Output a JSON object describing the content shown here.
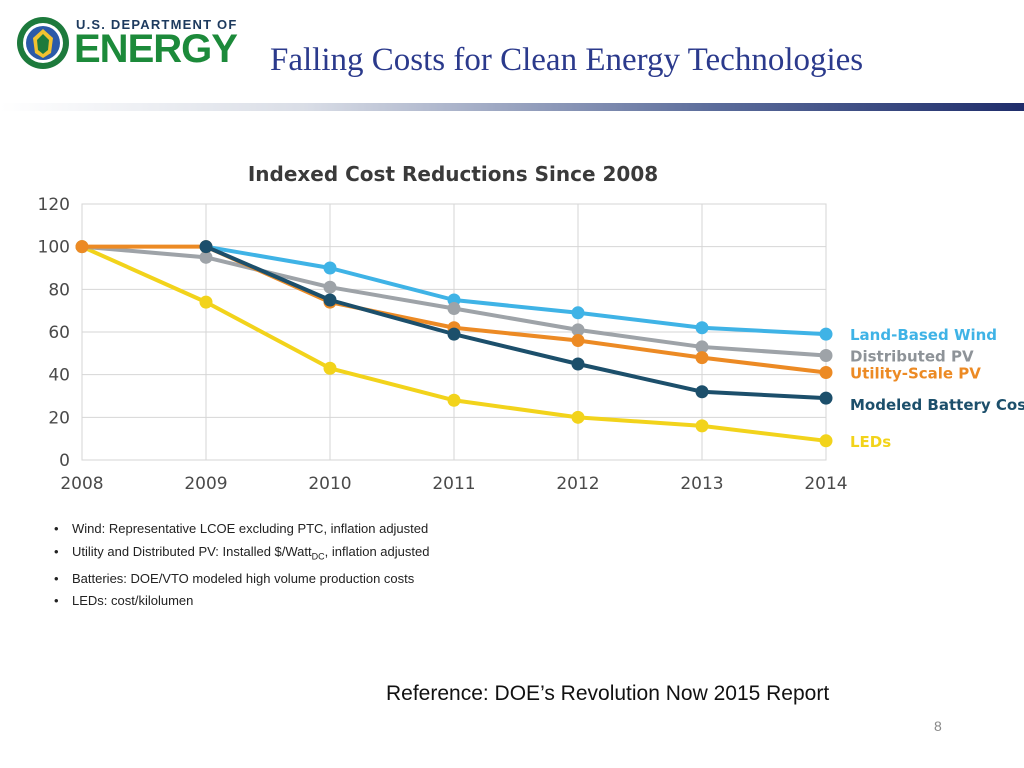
{
  "header": {
    "dept_line": "U.S. DEPARTMENT OF",
    "wordmark": "ENERGY",
    "title": "Falling Costs for Clean Energy Technologies"
  },
  "chart_data": {
    "type": "line",
    "title": "Indexed Cost Reductions Since 2008",
    "x": [
      "2008",
      "2009",
      "2010",
      "2011",
      "2012",
      "2013",
      "2014"
    ],
    "ylim": [
      0,
      120
    ],
    "yticks": [
      0,
      20,
      40,
      60,
      80,
      100,
      120
    ],
    "grid": true,
    "legend_position": "right",
    "series": [
      {
        "name": "Land-Based Wind",
        "color": "#3fb3e6",
        "x": [
          "2009",
          "2010",
          "2011",
          "2012",
          "2013",
          "2014"
        ],
        "values": [
          100,
          90,
          75,
          69,
          62,
          59
        ]
      },
      {
        "name": "Distributed PV",
        "color": "#9ea3a8",
        "x": [
          "2008",
          "2009",
          "2010",
          "2011",
          "2012",
          "2013",
          "2014"
        ],
        "values": [
          100,
          95,
          81,
          71,
          61,
          53,
          49
        ]
      },
      {
        "name": "Utility-Scale PV",
        "color": "#ec8a24",
        "x": [
          "2008",
          "2009",
          "2010",
          "2011",
          "2012",
          "2013",
          "2014"
        ],
        "values": [
          100,
          100,
          74,
          62,
          56,
          48,
          41
        ]
      },
      {
        "name": "Modeled Battery Costs",
        "color": "#1c4f6b",
        "x": [
          "2009",
          "2010",
          "2011",
          "2012",
          "2013",
          "2014"
        ],
        "values": [
          100,
          75,
          59,
          45,
          32,
          29
        ]
      },
      {
        "name": "LEDs",
        "color": "#f2d31b",
        "x": [
          "2008",
          "2009",
          "2010",
          "2011",
          "2012",
          "2013",
          "2014"
        ],
        "values": [
          100,
          74,
          43,
          28,
          20,
          16,
          9
        ]
      }
    ]
  },
  "notes": [
    {
      "text": "Wind: Representative LCOE excluding PTC, inflation adjusted"
    },
    {
      "pre": "Utility and Distributed PV: Installed $/Watt",
      "sub": "DC",
      "post": ", inflation adjusted"
    },
    {
      "text": "Batteries: DOE/VTO modeled high volume production costs"
    },
    {
      "text": "LEDs: cost/kilolumen"
    }
  ],
  "reference": "Reference:  DOE’s Revolution Now 2015 Report",
  "page_number": "8",
  "colors": {
    "title": "#2b3a8c",
    "brand_green": "#1c8a3a",
    "brand_navy": "#1d3a5e"
  }
}
